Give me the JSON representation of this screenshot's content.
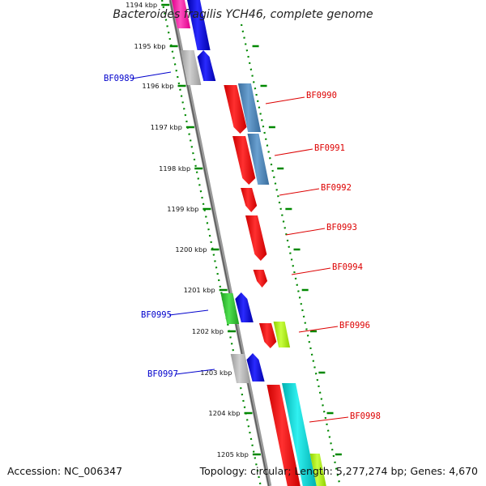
{
  "title": "Bacteroides fragilis YCH46, complete genome",
  "footer": {
    "accession": "Accession: NC_006347",
    "summary": "Topology: circular; Length: 5,277,274 bp; Genes: 4,670"
  },
  "colors": {
    "forward_label": "#0000cc",
    "reverse_label": "#dd0000",
    "backbone": "#808080",
    "tick": "#008800"
  },
  "ruler": [
    "1194 kbp",
    "1195 kbp",
    "1196 kbp",
    "1197 kbp",
    "1198 kbp",
    "1199 kbp",
    "1200 kbp",
    "1201 kbp",
    "1202 kbp",
    "1203 kbp",
    "1204 kbp",
    "1205 kbp"
  ],
  "gene_labels": [
    {
      "name": "BF0989",
      "strand": "forward"
    },
    {
      "name": "BF0990",
      "strand": "reverse"
    },
    {
      "name": "BF0991",
      "strand": "reverse"
    },
    {
      "name": "BF0992",
      "strand": "reverse"
    },
    {
      "name": "BF0993",
      "strand": "reverse"
    },
    {
      "name": "BF0994",
      "strand": "reverse"
    },
    {
      "name": "BF0995",
      "strand": "forward"
    },
    {
      "name": "BF0996",
      "strand": "reverse"
    },
    {
      "name": "BF0997",
      "strand": "forward"
    },
    {
      "name": "BF0998",
      "strand": "reverse"
    }
  ]
}
